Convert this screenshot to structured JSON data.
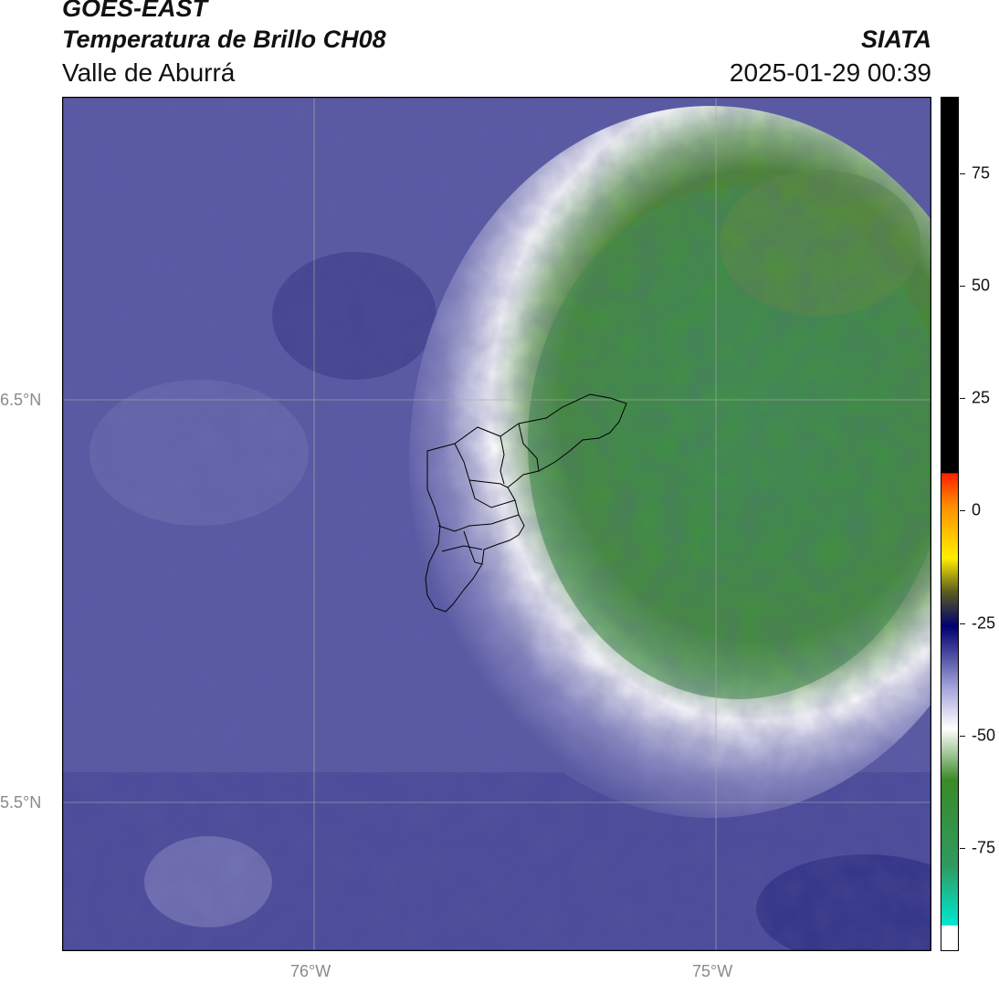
{
  "header": {
    "satellite": "GOES-EAST",
    "product": "Temperatura de Brillo CH08",
    "region": "Valle de Aburrá",
    "organization": "SIATA",
    "timestamp": "2025-01-29 00:39"
  },
  "map": {
    "lat_labels": [
      "6.5°N",
      "5.5°N"
    ],
    "lon_labels": [
      "76°W",
      "75°W"
    ],
    "colors": {
      "outer_purple": "#5a5aa6",
      "dark_purple": "#3a3a8c",
      "light_lavender": "#8a8ac4",
      "white_band": "#ffffff",
      "light_green": "#b8d4a8",
      "mid_green": "#4c8a2e",
      "deep_green": "#3b9448",
      "gridline": "#aaaaaa",
      "boundary": "#000000"
    }
  },
  "colorbar": {
    "ticks": [
      "75",
      "50",
      "25",
      "0",
      "-25",
      "-50",
      "-75"
    ],
    "colors": {
      "black": "#000000",
      "red": "#ff2000",
      "orange": "#ff9000",
      "yellow": "#ffee00",
      "olive": "#5a5a20",
      "navy": "#000070",
      "lavender": "#a0a0d8",
      "white": "#ffffff",
      "green": "#3a8a28",
      "cyan": "#00e8d0"
    }
  }
}
